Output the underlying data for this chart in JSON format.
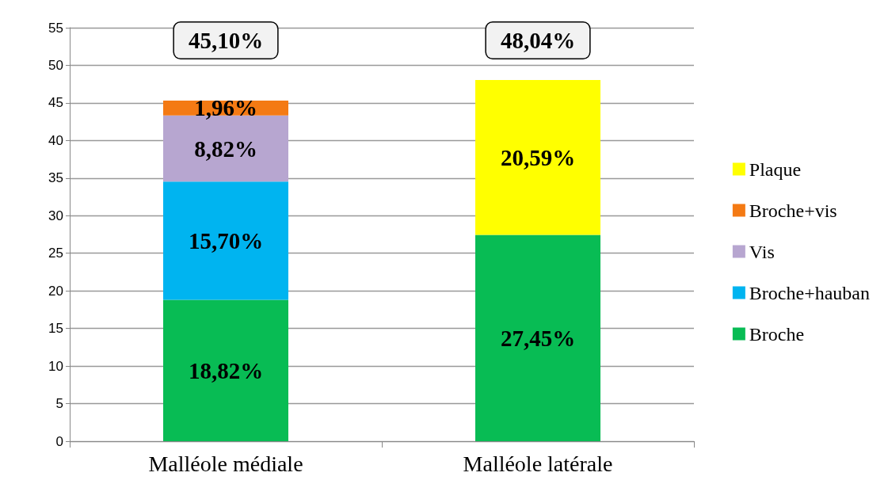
{
  "chart_data": {
    "type": "bar",
    "stacked": true,
    "categories": [
      "Malléole médiale",
      "Malléole latérale"
    ],
    "series": [
      {
        "name": "Broche",
        "color": "#08bc54",
        "values": [
          18.82,
          27.45
        ],
        "value_labels": [
          "18,82%",
          "27,45%"
        ]
      },
      {
        "name": "Broche+hauban",
        "color": "#00b4f0",
        "values": [
          15.7,
          null
        ],
        "value_labels": [
          "15,70%",
          null
        ]
      },
      {
        "name": "Vis",
        "color": "#b7a6d0",
        "values": [
          8.82,
          null
        ],
        "value_labels": [
          "8,82%",
          null
        ]
      },
      {
        "name": "Broche+vis",
        "color": "#f47a14",
        "values": [
          1.96,
          null
        ],
        "value_labels": [
          "1,96%",
          null
        ]
      },
      {
        "name": "Plaque",
        "color": "#ffff00",
        "values": [
          null,
          20.59
        ],
        "value_labels": [
          null,
          "20,59%"
        ]
      }
    ],
    "annotations": [
      "45,10%",
      "48,04%"
    ],
    "ylim": [
      0,
      55
    ],
    "yticks": [
      0,
      5,
      10,
      15,
      20,
      25,
      30,
      35,
      40,
      45,
      50,
      55
    ],
    "grid": "y",
    "legend": "right"
  }
}
